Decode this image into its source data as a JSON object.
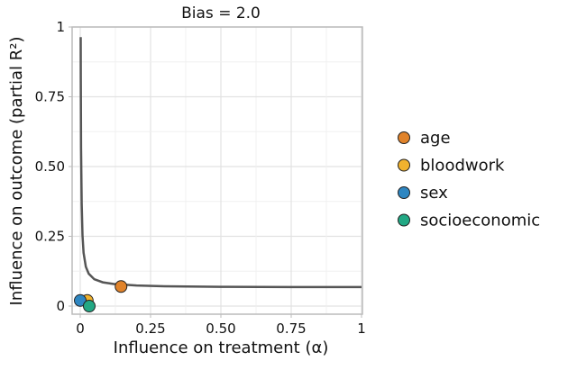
{
  "chart_data": {
    "type": "line",
    "title": "Bias = 2.0",
    "xlabel": "Influence on treatment (α)",
    "ylabel": "Influence on outcome (partial R²)",
    "xlim": [
      0,
      1
    ],
    "ylim": [
      0,
      1
    ],
    "xticks": [
      "0",
      "0.25",
      "0.50",
      "0.75",
      "1"
    ],
    "xtick_values": [
      0,
      0.25,
      0.5,
      0.75,
      1
    ],
    "yticks": [
      "0",
      "0.25",
      "0.50",
      "0.75",
      "1"
    ],
    "ytick_values": [
      0,
      0.25,
      0.5,
      0.75,
      1
    ],
    "grid": true,
    "legend_placement": "right",
    "curve": {
      "color": "#555555",
      "x": [
        0.00167,
        0.002,
        0.003,
        0.005,
        0.008,
        0.012,
        0.02,
        0.03,
        0.05,
        0.08,
        0.12,
        0.2,
        0.3,
        0.5,
        0.75,
        1.0
      ],
      "y": [
        0.964,
        0.816,
        0.566,
        0.366,
        0.254,
        0.191,
        0.141,
        0.116,
        0.096,
        0.085,
        0.079,
        0.074,
        0.071,
        0.069,
        0.068,
        0.068
      ]
    },
    "points": [
      {
        "name": "age",
        "x": 0.145,
        "y": 0.07,
        "color": "#e0832b"
      },
      {
        "name": "bloodwork",
        "x": 0.025,
        "y": 0.02,
        "color": "#f0b22e"
      },
      {
        "name": "sex",
        "x": 0.0,
        "y": 0.02,
        "color": "#2e86c1"
      },
      {
        "name": "socioeconomic",
        "x": 0.032,
        "y": 0.0,
        "color": "#22a884"
      }
    ]
  }
}
